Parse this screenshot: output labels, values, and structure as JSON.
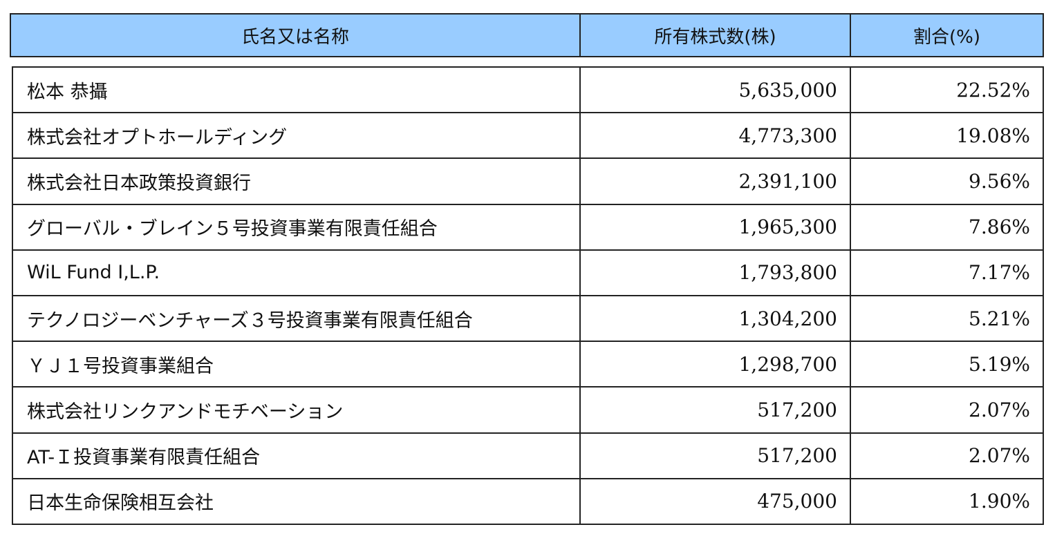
{
  "header": {
    "name": "氏名又は名称",
    "shares": "所有株式数(株)",
    "ratio": "割合(%)"
  },
  "rows": [
    {
      "name": "松本 恭攝",
      "shares": "5,635,000",
      "ratio": "22.52%"
    },
    {
      "name": "株式会社オプトホールディング",
      "shares": "4,773,300",
      "ratio": "19.08%"
    },
    {
      "name": "株式会社日本政策投資銀行",
      "shares": "2,391,100",
      "ratio": "9.56%"
    },
    {
      "name": "グローバル・ブレイン５号投資事業有限責任組合",
      "shares": "1,965,300",
      "ratio": "7.86%"
    },
    {
      "name": "WiL Fund I,L.P.",
      "shares": "1,793,800",
      "ratio": "7.17%"
    },
    {
      "name": "テクノロジーベンチャーズ３号投資事業有限責任組合",
      "shares": "1,304,200",
      "ratio": "5.21%"
    },
    {
      "name": "ＹＪ１号投資事業組合",
      "shares": "1,298,700",
      "ratio": "5.19%"
    },
    {
      "name": "株式会社リンクアンドモチベーション",
      "shares": "517,200",
      "ratio": "2.07%"
    },
    {
      "name": "AT-Ｉ投資事業有限責任組合",
      "shares": "517,200",
      "ratio": "2.07%"
    },
    {
      "name": "日本生命保険相互会社",
      "shares": "475,000",
      "ratio": "1.90%"
    }
  ]
}
